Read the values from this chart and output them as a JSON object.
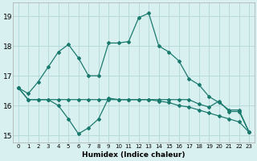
{
  "title": "",
  "xlabel": "Humidex (Indice chaleur)",
  "ylabel": "",
  "background_color": "#d9f0f0",
  "grid_color": "#b8dada",
  "line_color": "#1a7a6e",
  "xlim": [
    -0.5,
    23.5
  ],
  "ylim": [
    14.75,
    19.45
  ],
  "yticks": [
    15,
    16,
    17,
    18,
    19
  ],
  "xticks": [
    0,
    1,
    2,
    3,
    4,
    5,
    6,
    7,
    8,
    9,
    10,
    11,
    12,
    13,
    14,
    15,
    16,
    17,
    18,
    19,
    20,
    21,
    22,
    23
  ],
  "series1_x": [
    0,
    1,
    2,
    3,
    4,
    5,
    6,
    7,
    8,
    9,
    10,
    11,
    12,
    13,
    14,
    15,
    16,
    17,
    18,
    19,
    20,
    21,
    22,
    23
  ],
  "series1_y": [
    16.6,
    16.4,
    16.8,
    17.3,
    17.8,
    18.05,
    17.6,
    17.0,
    17.0,
    18.1,
    18.1,
    18.15,
    18.95,
    19.1,
    18.0,
    17.8,
    17.5,
    16.9,
    16.7,
    16.3,
    16.1,
    15.85,
    15.85,
    15.1
  ],
  "series2_x": [
    0,
    1,
    2,
    3,
    4,
    5,
    6,
    7,
    8,
    9,
    10,
    11,
    12,
    13,
    14,
    15,
    16,
    17,
    18,
    19,
    20,
    21,
    22,
    23
  ],
  "series2_y": [
    16.6,
    16.2,
    16.2,
    16.2,
    16.0,
    15.55,
    15.05,
    15.25,
    15.55,
    16.25,
    16.2,
    16.2,
    16.2,
    16.2,
    16.2,
    16.2,
    16.2,
    16.2,
    16.05,
    15.95,
    16.15,
    15.8,
    15.8,
    15.1
  ],
  "series3_x": [
    0,
    1,
    2,
    3,
    4,
    5,
    6,
    7,
    8,
    9,
    10,
    11,
    12,
    13,
    14,
    15,
    16,
    17,
    18,
    19,
    20,
    21,
    22,
    23
  ],
  "series3_y": [
    16.6,
    16.2,
    16.2,
    16.2,
    16.2,
    16.2,
    16.2,
    16.2,
    16.2,
    16.2,
    16.2,
    16.2,
    16.2,
    16.2,
    16.15,
    16.1,
    16.0,
    15.95,
    15.85,
    15.75,
    15.65,
    15.55,
    15.45,
    15.1
  ]
}
